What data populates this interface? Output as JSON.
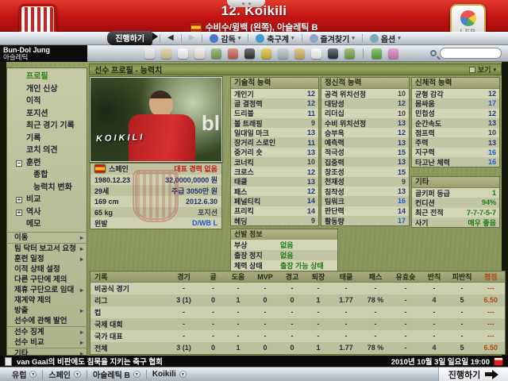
{
  "header": {
    "title": "12. Koikili",
    "subtitle": "수비수/윙백 (왼쪽), 아슬레틱 B",
    "club_badge": "athletic-club-crest",
    "league_logo_text": "LFP"
  },
  "toolbar": {
    "continue_label": "진행하기",
    "back": "◀",
    "forward": "▶",
    "menus": [
      {
        "icon": "manager-icon",
        "color": "#4a78c8",
        "label": "감독"
      },
      {
        "icon": "world-icon",
        "color": "#3c9ad2",
        "label": "축구계"
      },
      {
        "icon": "favorites-icon",
        "color": "#8fa6c8",
        "label": "즐겨찾기"
      },
      {
        "icon": "options-icon",
        "color": "#7fa8b8",
        "label": "옵션"
      }
    ]
  },
  "manager": {
    "name": "Bun-Dol Jung",
    "club": "아슬레틱"
  },
  "icon_strip": [
    {
      "name": "home-icon",
      "color": "#e6e6e6"
    },
    {
      "name": "inbox-icon",
      "color": "#d9c892"
    },
    {
      "name": "news-icon",
      "color": "#f4f4f4"
    },
    {
      "name": "calendar-icon",
      "color": "#f0e8e0"
    },
    {
      "name": "squad-icon",
      "color": "#7aa050"
    },
    {
      "name": "transfers-icon",
      "color": "#c86050"
    },
    {
      "name": "fixtures-icon",
      "color": "#303030"
    },
    {
      "name": "trophy-icon",
      "color": "#d8b830"
    },
    {
      "name": "search-small-icon",
      "color": "#b2bac2"
    },
    {
      "name": "clipboard-icon",
      "color": "#d0b060"
    },
    {
      "name": "tactics-icon",
      "color": "#f6f6f6"
    },
    {
      "name": "scouting-icon",
      "color": "#26303c"
    },
    {
      "name": "notes-icon",
      "color": "#72a442"
    },
    {
      "name": "help-icon",
      "color": "#58a838"
    },
    {
      "name": "hint-icon",
      "color": "#d878c0"
    }
  ],
  "search": {
    "placeholder": ""
  },
  "section": {
    "title": "선수 프로필 - 능력치",
    "view_label": "보기"
  },
  "sidebar": {
    "nav": [
      {
        "label": "프로필",
        "state": "selected"
      },
      {
        "label": "개인 신상"
      },
      {
        "label": "이적"
      },
      {
        "label": "포지션"
      },
      {
        "label": "최근 경기 기록"
      },
      {
        "label": "기록"
      },
      {
        "label": "코치 의견"
      },
      {
        "label": "훈련",
        "expander": "minus"
      },
      {
        "label": "종합",
        "sub": true
      },
      {
        "label": "능력치 변화",
        "sub": true
      },
      {
        "label": "비교",
        "expander": "plus"
      },
      {
        "label": "역사",
        "expander": "plus"
      },
      {
        "label": "메모"
      }
    ],
    "action_groups": [
      [
        {
          "label": "이동",
          "submenu": true
        }
      ],
      [
        {
          "label": "팀 닥터 보고서 요청",
          "submenu": true
        },
        {
          "label": "훈련 일정",
          "submenu": true
        },
        {
          "label": "이적 상태 설정"
        },
        {
          "label": "다른 구단에 제의"
        },
        {
          "label": "제휴 구단으로 임대",
          "submenu": true
        },
        {
          "label": "재계약 제의"
        },
        {
          "label": "방출",
          "submenu": true
        },
        {
          "label": "선수에 관해 발언"
        }
      ],
      [
        {
          "label": "선수 징계",
          "submenu": true
        },
        {
          "label": "선수 비교",
          "submenu": true
        }
      ],
      [
        {
          "label": "기타",
          "submenu": true
        }
      ]
    ]
  },
  "player": {
    "photo_watermark": "KOIKILI",
    "photo_board_text": "bl",
    "info_rows": [
      {
        "label": "스페인",
        "flag": true,
        "value": "대표 경력 없음",
        "value_color": "#c01818"
      },
      {
        "label": "1980.12.23",
        "value": "32,0000,0000 원"
      },
      {
        "label": "29세",
        "value": "주급 3050만 원"
      },
      {
        "label": "169 cm",
        "value": "2012.6.30"
      },
      {
        "label": "65 kg",
        "value": "포지션",
        "value_color": "#3e4248"
      },
      {
        "label": "왼발",
        "value": "D/WB L",
        "value_color": "#1d56c8"
      }
    ]
  },
  "attributes": {
    "technical": {
      "title": "기술적 능력",
      "rows": [
        [
          "개인기",
          12
        ],
        [
          "골 결정력",
          12
        ],
        [
          "드리블",
          11
        ],
        [
          "볼 트래핑",
          9
        ],
        [
          "일대일 마크",
          13
        ],
        [
          "장거리 스로인",
          11
        ],
        [
          "중거리 숏",
          13
        ],
        [
          "코너킥",
          10
        ],
        [
          "크로스",
          12
        ],
        [
          "태클",
          13
        ],
        [
          "패스",
          12
        ],
        [
          "페널티킥",
          14
        ],
        [
          "프리킥",
          14
        ],
        [
          "헤딩",
          9
        ]
      ]
    },
    "mental": {
      "title": "정신적 능력",
      "rows": [
        [
          "공격 위치선정",
          10
        ],
        [
          "대담성",
          12
        ],
        [
          "리더십",
          10
        ],
        [
          "수비 위치선정",
          13
        ],
        [
          "승부욕",
          12
        ],
        [
          "예측력",
          13
        ],
        [
          "적극성",
          15
        ],
        [
          "집중력",
          13
        ],
        [
          "창조성",
          15
        ],
        [
          "천재성",
          9
        ],
        [
          "침착성",
          13
        ],
        [
          "팀워크",
          16
        ],
        [
          "판단력",
          14
        ],
        [
          "활동량",
          17
        ]
      ]
    },
    "physical": {
      "title": "신체적 능력",
      "rows": [
        [
          "균형 감각",
          12
        ],
        [
          "몸싸움",
          17
        ],
        [
          "민첩성",
          12
        ],
        [
          "순간속도",
          13
        ],
        [
          "점프력",
          10
        ],
        [
          "주력",
          13
        ],
        [
          "지구력",
          16
        ],
        [
          "타고난 체력",
          16
        ]
      ]
    },
    "other": {
      "title": "기타",
      "rows": [
        [
          "골키퍼 등급",
          "1"
        ],
        [
          "컨디션",
          "94%"
        ],
        [
          "최근 전적",
          "7-7-7-5-7"
        ],
        [
          "사기",
          "매우 좋음"
        ]
      ]
    }
  },
  "selection_info": {
    "title": "선발 정보",
    "rows": [
      {
        "label": "부상",
        "value": "없음"
      },
      {
        "label": "출장 정지",
        "value": "없음"
      },
      {
        "label": "체력 상태",
        "value": "출장 가능 상태"
      }
    ]
  },
  "stats": {
    "headers": [
      "기록",
      "경기",
      "골",
      "도움",
      "MVP",
      "경고",
      "퇴장",
      "태클",
      "패스",
      "유효슛",
      "반칙",
      "피반칙",
      "평점"
    ],
    "rows": [
      {
        "label": "비공식 경기",
        "cells": [
          "-",
          "-",
          "-",
          "-",
          "-",
          "-",
          "-",
          "-",
          "-",
          "-",
          "-",
          "---"
        ]
      },
      {
        "label": "리그",
        "cells": [
          "3 (1)",
          "0",
          "1",
          "0",
          "0",
          "1",
          "1.77",
          "78 %",
          "-",
          "4",
          "5",
          "6.50"
        ]
      },
      {
        "label": "컵",
        "cells": [
          "-",
          "-",
          "-",
          "-",
          "-",
          "-",
          "-",
          "-",
          "-",
          "-",
          "-",
          "---"
        ]
      },
      {
        "label": "국제 대회",
        "cells": [
          "-",
          "-",
          "-",
          "-",
          "-",
          "-",
          "-",
          "-",
          "-",
          "-",
          "-",
          "---"
        ]
      },
      {
        "label": "국가 대표",
        "cells": [
          "-",
          "-",
          "-",
          "-",
          "-",
          "-",
          "-",
          "-",
          "-",
          "-",
          "-",
          "---"
        ]
      },
      {
        "label": "전체",
        "cells": [
          "3 (1)",
          "0",
          "1",
          "0",
          "0",
          "1",
          "1.77",
          "78 %",
          "-",
          "4",
          "5",
          "6.50"
        ]
      }
    ]
  },
  "ticker": {
    "text": "van Gaal의 비판에도 침묵을 지키는 축구 협회",
    "datetime": "2010년 10월 3일 일요일 19:00"
  },
  "bottombar": {
    "breadcrumbs": [
      "유럽",
      "스페인",
      "아슬레틱 B",
      "Koikili"
    ],
    "continue_label": "진행하기"
  },
  "colors": {
    "header_red": "#c41414",
    "attr_low": "#3c3c3c",
    "attr_mid": "#23357c",
    "attr_high": "#1d5ad2",
    "status_green": "#1c7a14",
    "rating_orange": "#b04a12"
  }
}
